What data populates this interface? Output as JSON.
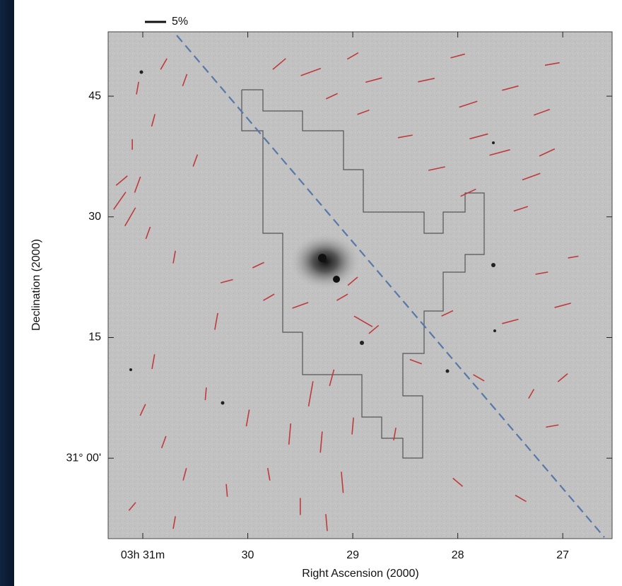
{
  "chart_data": {
    "type": "vector",
    "x_label": "Right Ascension (2000)",
    "y_label": "Declination (2000)",
    "xlim": [
      31.33,
      26.53
    ],
    "ylim": [
      -10,
      53
    ],
    "xticks": [
      {
        "value": 31,
        "label": "03h 31m"
      },
      30,
      29,
      28,
      27
    ],
    "yticks": [
      {
        "value": 0,
        "label": "31° 00'"
      },
      15,
      30,
      45
    ],
    "color": "#c0393b",
    "scale_bar": {
      "value": 5,
      "label": "5%"
    },
    "vectors": {
      "ra": [
        28.3,
        27.9,
        27.5,
        27.2,
        27.1,
        28.0,
        27.6,
        27.3,
        28.2,
        28.5,
        27.9,
        27.4,
        28.8,
        28.9,
        27.8,
        27.15,
        29.4,
        29.7,
        29.0,
        29.2,
        31.05,
        30.8,
        30.6,
        30.9,
        30.5,
        31.1,
        31.22,
        31.12,
        31.05,
        31.2,
        30.95,
        30.7,
        30.2,
        29.9,
        30.3,
        29.8,
        29.5,
        29.1,
        28.9,
        29.0,
        28.8,
        30.0,
        29.6,
        29.4,
        29.3,
        29.2,
        29.1,
        29.5,
        29.0,
        29.8,
        29.25,
        28.6,
        30.2,
        31.0,
        30.8,
        30.6,
        31.1,
        30.4,
        30.9,
        30.7,
        28.1,
        27.5,
        27.0,
        27.8,
        27.3,
        27.0,
        28.0,
        27.4,
        27.1,
        28.4,
        27.2,
        26.9
      ],
      "dec": [
        47,
        44,
        46,
        43,
        49,
        50,
        38,
        35,
        36,
        40,
        33,
        31,
        47,
        43,
        40,
        38,
        48,
        49,
        50,
        45,
        46,
        49,
        47,
        42,
        37,
        39,
        32,
        30,
        34,
        34.5,
        28,
        25,
        22,
        24,
        17,
        20,
        19,
        20,
        17,
        22,
        16,
        5,
        3,
        8,
        2,
        10,
        -3,
        -6,
        4,
        -2,
        -8,
        3,
        -4,
        6,
        2,
        -2,
        -6,
        8,
        12,
        -8,
        18,
        17,
        19,
        10,
        8,
        10,
        -3,
        -5,
        4,
        12,
        23,
        25
      ],
      "p": [
        4,
        4.5,
        4,
        4,
        3.5,
        3.5,
        5,
        4.5,
        4,
        3.5,
        4,
        3.5,
        4,
        3,
        4.5,
        4,
        5,
        4,
        3,
        3,
        3,
        3,
        3,
        3,
        3,
        2.5,
        5,
        5,
        4,
        3.5,
        3,
        3,
        3,
        3,
        4,
        3,
        4,
        3,
        5,
        3,
        3,
        4,
        5,
        6,
        5,
        4,
        5,
        4,
        4,
        3,
        4,
        3,
        3,
        3,
        3,
        3,
        2.5,
        3,
        3.5,
        3,
        3,
        4,
        4,
        3,
        2.5,
        3,
        3,
        3,
        3,
        3,
        3,
        2.5
      ],
      "angle": [
        12,
        18,
        15,
        20,
        10,
        15,
        15,
        20,
        12,
        10,
        25,
        18,
        15,
        20,
        15,
        25,
        20,
        40,
        30,
        25,
        80,
        60,
        70,
        75,
        70,
        90,
        55,
        60,
        70,
        40,
        70,
        80,
        15,
        25,
        80,
        30,
        20,
        30,
        -30,
        40,
        40,
        80,
        85,
        80,
        85,
        75,
        95,
        90,
        85,
        100,
        95,
        80,
        95,
        65,
        70,
        75,
        50,
        85,
        80,
        80,
        25,
        15,
        15,
        -30,
        60,
        40,
        -40,
        -30,
        10,
        -20,
        10,
        10
      ]
    }
  }
}
